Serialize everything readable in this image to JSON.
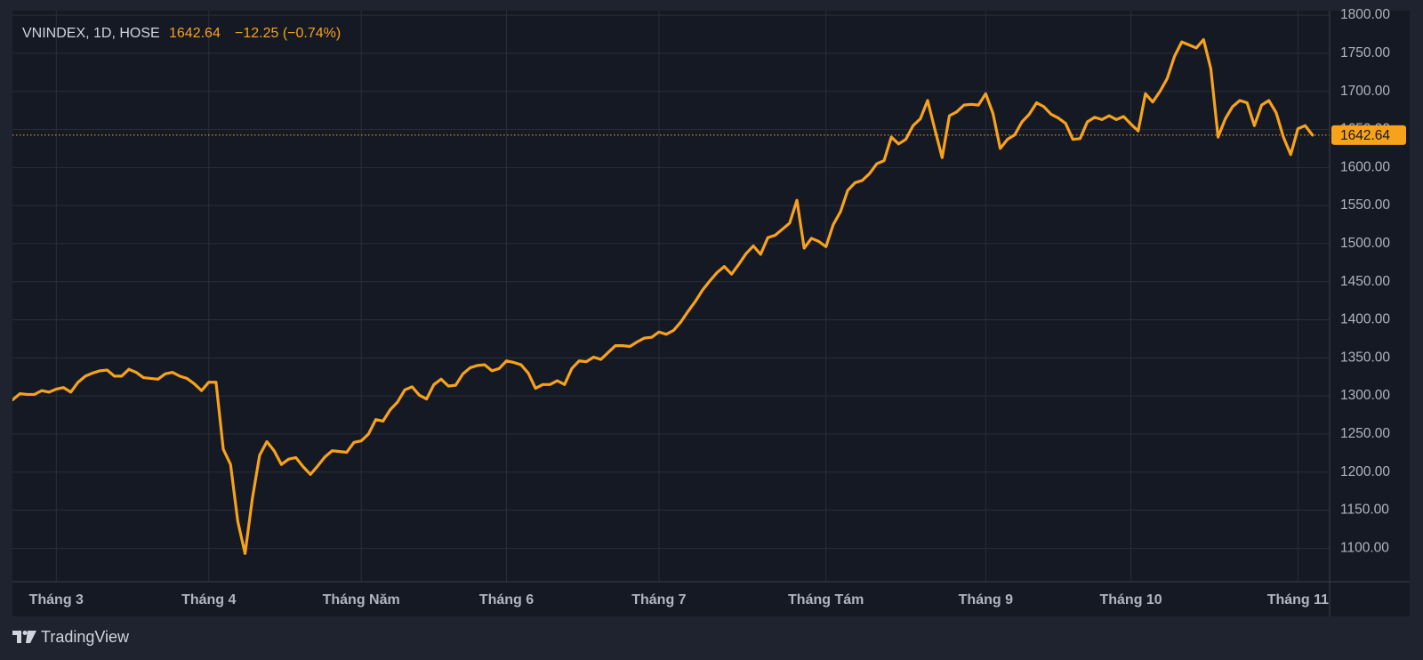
{
  "chart_data": {
    "type": "line",
    "symbol": "VNINDEX, 1D, HOSE",
    "change": "−12.25 (−0.74%)",
    "brand": "TradingView",
    "color": "#f7a21b",
    "grid": true,
    "categories": [
      null,
      null,
      null,
      null,
      null,
      null,
      "Tháng 3",
      null,
      null,
      null,
      null,
      null,
      null,
      null,
      null,
      null,
      null,
      null,
      null,
      null,
      null,
      null,
      null,
      null,
      null,
      null,
      null,
      "Tháng 4",
      null,
      null,
      null,
      null,
      null,
      null,
      null,
      null,
      null,
      null,
      null,
      null,
      null,
      null,
      null,
      null,
      null,
      null,
      null,
      null,
      "Tháng Năm",
      null,
      null,
      null,
      null,
      null,
      null,
      null,
      null,
      null,
      null,
      null,
      null,
      null,
      null,
      null,
      null,
      null,
      null,
      null,
      "Tháng 6",
      null,
      null,
      null,
      null,
      null,
      null,
      null,
      null,
      null,
      null,
      null,
      null,
      null,
      null,
      null,
      null,
      null,
      null,
      null,
      null,
      "Tháng 7",
      null,
      null,
      null,
      null,
      null,
      null,
      null,
      null,
      null,
      null,
      null,
      null,
      null,
      null,
      null,
      null,
      null,
      null,
      null,
      null,
      null,
      null,
      "Tháng Tám",
      null,
      null,
      null,
      null,
      null,
      null,
      null,
      null,
      null,
      null,
      null,
      null,
      null,
      null,
      null,
      null,
      null,
      null,
      null,
      null,
      null,
      "Tháng 9",
      null,
      null,
      null,
      null,
      null,
      null,
      null,
      null,
      null,
      null,
      null,
      null,
      null,
      null,
      null,
      null,
      null,
      null,
      null,
      "Tháng 10",
      null,
      null,
      null,
      null,
      null,
      null,
      null,
      null,
      null,
      null,
      null,
      null,
      null,
      null,
      null,
      null,
      null,
      null,
      null,
      null,
      null,
      null,
      "Tháng 11",
      null,
      null
    ],
    "values": [
      1295,
      1303,
      1302,
      1302,
      1307,
      1305,
      1309,
      1311,
      1305,
      1318,
      1326,
      1330,
      1333,
      1334,
      1326,
      1326,
      1335,
      1331,
      1324,
      1323,
      1322,
      1329,
      1331,
      1326,
      1323,
      1316,
      1307,
      1318,
      1318,
      1230,
      1210,
      1135,
      1093,
      1165,
      1222,
      1240,
      1228,
      1210,
      1217,
      1219,
      1207,
      1197,
      1208,
      1220,
      1228,
      1227,
      1226,
      1239,
      1241,
      1250,
      1269,
      1267,
      1282,
      1292,
      1308,
      1312,
      1301,
      1296,
      1315,
      1322,
      1313,
      1314,
      1329,
      1337,
      1340,
      1341,
      1333,
      1336,
      1346,
      1344,
      1341,
      1330,
      1310,
      1315,
      1315,
      1320,
      1315,
      1336,
      1346,
      1345,
      1351,
      1348,
      1357,
      1366,
      1366,
      1365,
      1371,
      1376,
      1377,
      1384,
      1381,
      1386,
      1397,
      1411,
      1424,
      1439,
      1451,
      1462,
      1470,
      1460,
      1473,
      1487,
      1497,
      1486,
      1508,
      1511,
      1519,
      1527,
      1557,
      1494,
      1507,
      1503,
      1496,
      1525,
      1542,
      1570,
      1580,
      1583,
      1592,
      1605,
      1609,
      1640,
      1631,
      1637,
      1655,
      1664,
      1688,
      1650,
      1613,
      1668,
      1673,
      1682,
      1683,
      1682,
      1697,
      1671,
      1625,
      1637,
      1643,
      1660,
      1670,
      1685,
      1680,
      1670,
      1665,
      1658,
      1637,
      1638,
      1660,
      1666,
      1663,
      1668,
      1663,
      1667,
      1657,
      1648,
      1697,
      1686,
      1700,
      1717,
      1746,
      1765,
      1761,
      1757,
      1768,
      1730,
      1640,
      1664,
      1680,
      1688,
      1685,
      1655,
      1682,
      1688,
      1672,
      1640,
      1617,
      1651,
      1655,
      1642.64
    ],
    "ylim": [
      1056,
      1806
    ],
    "yticks": [
      {
        "value": 1100,
        "label": "1100.00"
      },
      {
        "value": 1150,
        "label": "1150.00"
      },
      {
        "value": 1200,
        "label": "1200.00"
      },
      {
        "value": 1250,
        "label": "1250.00"
      },
      {
        "value": 1300,
        "label": "1300.00"
      },
      {
        "value": 1350,
        "label": "1350.00"
      },
      {
        "value": 1400,
        "label": "1400.00"
      },
      {
        "value": 1450,
        "label": "1450.00"
      },
      {
        "value": 1500,
        "label": "1500.00"
      },
      {
        "value": 1550,
        "label": "1550.00"
      },
      {
        "value": 1600,
        "label": "1600.00"
      },
      {
        "value": 1650,
        "label": "1650.00"
      },
      {
        "value": 1700,
        "label": "1700.00"
      },
      {
        "value": 1750,
        "label": "1750.00"
      },
      {
        "value": 1800,
        "label": "1800.00"
      }
    ]
  }
}
